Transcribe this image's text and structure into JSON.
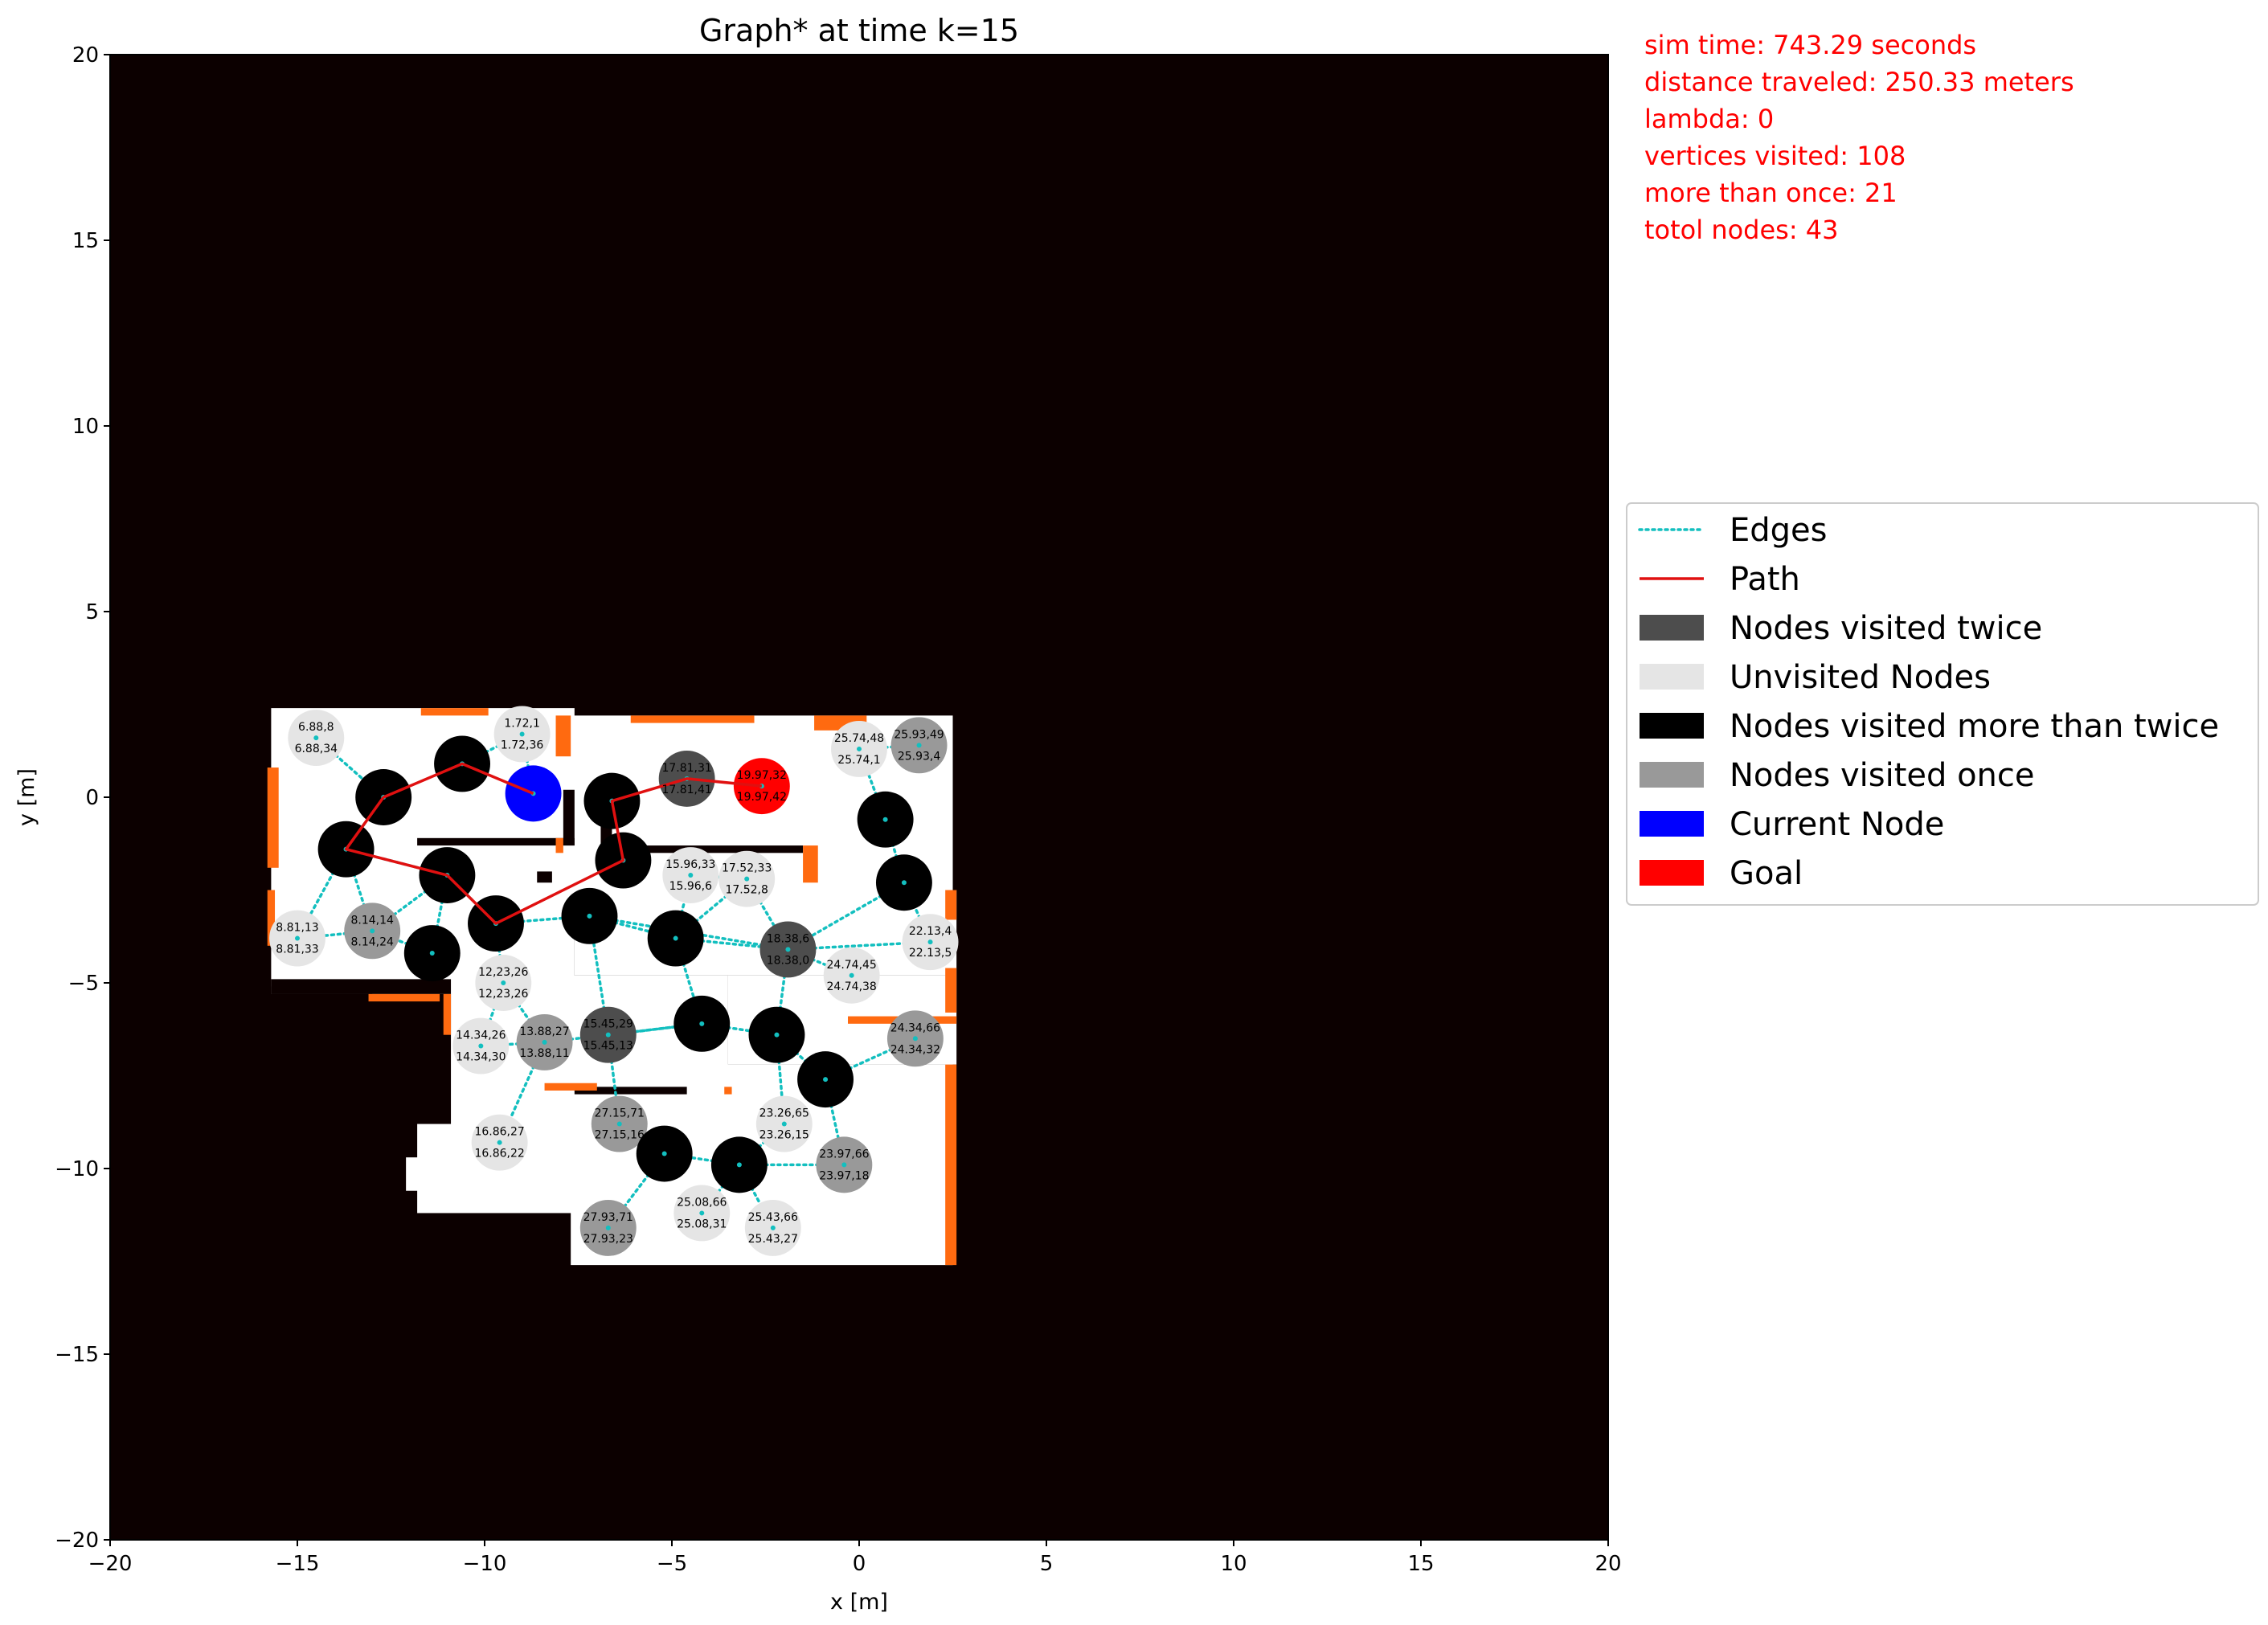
{
  "chart_data": {
    "type": "scatter",
    "title": "Graph* at time k=15",
    "xlabel": "x [m]",
    "ylabel": "y [m]",
    "xlim": [
      -20,
      20
    ],
    "ylim": [
      -20,
      20
    ],
    "xticks": [
      -20,
      -15,
      -10,
      -5,
      0,
      5,
      10,
      15,
      20
    ],
    "yticks": [
      -20,
      -15,
      -10,
      -5,
      0,
      5,
      10,
      15,
      20
    ],
    "xtick_labels": [
      "−20",
      "−15",
      "−10",
      "−5",
      "0",
      "5",
      "10",
      "15",
      "20"
    ],
    "ytick_labels": [
      "−20",
      "−15",
      "−10",
      "−5",
      "0",
      "5",
      "10",
      "15",
      "20"
    ],
    "grid": false,
    "legend_position": "center-right, outside plot",
    "colors": {
      "background": "#0c0000",
      "free_space": "#ffffff",
      "obstacle_edge": "#ff6a10",
      "edges": "#13bfbf",
      "path": "#e01010",
      "twice": "#4d4d4d",
      "unvisited": "#e5e5e5",
      "more_than_twice": "#000000",
      "once": "#999999",
      "current": "#0000ff",
      "goal": "#ff0000",
      "annotation": "#ff0000"
    },
    "annotations": [
      "sim time: 743.29 seconds",
      "distance traveled: 250.33 meters",
      "lambda: 0",
      "vertices visited: 108",
      "more than once: 21",
      "totol nodes: 43"
    ],
    "legend": [
      {
        "label": "Edges",
        "kind": "edges"
      },
      {
        "label": "Path",
        "kind": "path"
      },
      {
        "label": "Nodes visited twice",
        "kind": "twice"
      },
      {
        "label": "Unvisited Nodes",
        "kind": "unvisited"
      },
      {
        "label": "Nodes visited more than twice",
        "kind": "more_than_twice"
      },
      {
        "label": "Nodes visited once",
        "kind": "once"
      },
      {
        "label": "Current Node",
        "kind": "current"
      },
      {
        "label": "Goal",
        "kind": "goal"
      }
    ],
    "nodes": [
      {
        "x": -14.5,
        "y": 1.6,
        "status": "unvisited",
        "labels": [
          "6.88,8",
          "6.88,34"
        ]
      },
      {
        "x": -9.0,
        "y": 1.7,
        "status": "unvisited",
        "labels": [
          "1.72,1",
          "1.72,36"
        ]
      },
      {
        "x": -4.6,
        "y": 0.5,
        "status": "twice",
        "labels": [
          "17.81,31",
          "17.81,41"
        ]
      },
      {
        "x": -2.6,
        "y": 0.3,
        "status": "goal",
        "labels": [
          "19.97,32",
          "19.97,42"
        ]
      },
      {
        "x": 0.0,
        "y": 1.3,
        "status": "unvisited",
        "labels": [
          "25.74,48",
          "25.74,1"
        ]
      },
      {
        "x": 1.6,
        "y": 1.4,
        "status": "once",
        "labels": [
          "25.93,49",
          "25.93,4"
        ]
      },
      {
        "x": -4.5,
        "y": -2.1,
        "status": "unvisited",
        "labels": [
          "15.96,33",
          "15.96,6"
        ]
      },
      {
        "x": -3.0,
        "y": -2.2,
        "status": "unvisited",
        "labels": [
          "17.52,33",
          "17.52,8"
        ]
      },
      {
        "x": -15.0,
        "y": -3.8,
        "status": "unvisited",
        "labels": [
          "8.81,13",
          "8.81,33"
        ]
      },
      {
        "x": -13.0,
        "y": -3.6,
        "status": "once",
        "labels": [
          "8.14,14",
          "8.14,24"
        ]
      },
      {
        "x": -9.5,
        "y": -5.0,
        "status": "unvisited",
        "labels": [
          "12,23,26",
          "12,23,26"
        ]
      },
      {
        "x": -1.9,
        "y": -4.1,
        "status": "twice",
        "labels": [
          "18.38,6",
          "18.38,0"
        ]
      },
      {
        "x": -0.2,
        "y": -4.8,
        "status": "unvisited",
        "labels": [
          "24.74,45",
          "24.74,38"
        ]
      },
      {
        "x": 1.9,
        "y": -3.9,
        "status": "unvisited",
        "labels": [
          "22.13,4",
          "22.13,5"
        ]
      },
      {
        "x": -10.1,
        "y": -6.7,
        "status": "unvisited",
        "labels": [
          "14.34,26",
          "14.34,30"
        ]
      },
      {
        "x": -8.4,
        "y": -6.6,
        "status": "once",
        "labels": [
          "13.88,27",
          "13.88,11"
        ]
      },
      {
        "x": -6.7,
        "y": -6.4,
        "status": "twice",
        "labels": [
          "15.45,29",
          "15.45,13"
        ]
      },
      {
        "x": 1.5,
        "y": -6.5,
        "status": "once",
        "labels": [
          "24.34,66",
          "24.34,32"
        ]
      },
      {
        "x": -9.6,
        "y": -9.3,
        "status": "unvisited",
        "labels": [
          "16.86,27",
          "16.86,22"
        ]
      },
      {
        "x": -6.4,
        "y": -8.8,
        "status": "once",
        "labels": [
          "27.15,71",
          "27.15,16"
        ]
      },
      {
        "x": -2.0,
        "y": -8.8,
        "status": "unvisited",
        "labels": [
          "23.26,65",
          "23.26,15"
        ]
      },
      {
        "x": -0.4,
        "y": -9.9,
        "status": "once",
        "labels": [
          "23.97,66",
          "23.97,18"
        ]
      },
      {
        "x": -6.7,
        "y": -11.6,
        "status": "once",
        "labels": [
          "27.93,71",
          "27.93,23"
        ]
      },
      {
        "x": -4.2,
        "y": -11.2,
        "status": "unvisited",
        "labels": [
          "25.08,66",
          "25.08,31"
        ]
      },
      {
        "x": -2.3,
        "y": -11.6,
        "status": "unvisited",
        "labels": [
          "25.43,66",
          "25.43,27"
        ]
      },
      {
        "x": -12.7,
        "y": 0.0,
        "status": "more_than_twice",
        "labels": []
      },
      {
        "x": -10.6,
        "y": 0.9,
        "status": "more_than_twice",
        "labels": []
      },
      {
        "x": -8.7,
        "y": 0.1,
        "status": "current",
        "labels": []
      },
      {
        "x": -6.6,
        "y": -0.1,
        "status": "more_than_twice",
        "labels": []
      },
      {
        "x": -13.7,
        "y": -1.4,
        "status": "more_than_twice",
        "labels": []
      },
      {
        "x": -6.3,
        "y": -1.7,
        "status": "more_than_twice",
        "labels": []
      },
      {
        "x": 0.7,
        "y": -0.6,
        "status": "more_than_twice",
        "labels": []
      },
      {
        "x": -11.0,
        "y": -2.1,
        "status": "more_than_twice",
        "labels": []
      },
      {
        "x": 1.2,
        "y": -2.3,
        "status": "more_than_twice",
        "labels": []
      },
      {
        "x": -9.7,
        "y": -3.4,
        "status": "more_than_twice",
        "labels": []
      },
      {
        "x": -11.4,
        "y": -4.2,
        "status": "more_than_twice",
        "labels": []
      },
      {
        "x": -7.2,
        "y": -3.2,
        "status": "more_than_twice",
        "labels": []
      },
      {
        "x": -4.9,
        "y": -3.8,
        "status": "more_than_twice",
        "labels": []
      },
      {
        "x": -4.2,
        "y": -6.1,
        "status": "more_than_twice",
        "labels": []
      },
      {
        "x": -2.2,
        "y": -6.4,
        "status": "more_than_twice",
        "labels": []
      },
      {
        "x": -0.9,
        "y": -7.6,
        "status": "more_than_twice",
        "labels": []
      },
      {
        "x": -5.2,
        "y": -9.6,
        "status": "more_than_twice",
        "labels": []
      },
      {
        "x": -3.2,
        "y": -9.9,
        "status": "more_than_twice",
        "labels": []
      }
    ],
    "edges": [
      [
        0,
        25
      ],
      [
        1,
        26
      ],
      [
        1,
        27
      ],
      [
        25,
        29
      ],
      [
        29,
        32
      ],
      [
        29,
        8
      ],
      [
        29,
        9
      ],
      [
        32,
        9
      ],
      [
        32,
        35
      ],
      [
        35,
        9
      ],
      [
        9,
        8
      ],
      [
        32,
        34
      ],
      [
        34,
        10
      ],
      [
        34,
        36
      ],
      [
        10,
        15
      ],
      [
        10,
        14
      ],
      [
        15,
        14
      ],
      [
        15,
        18
      ],
      [
        15,
        16
      ],
      [
        16,
        36
      ],
      [
        36,
        37
      ],
      [
        37,
        6
      ],
      [
        37,
        7
      ],
      [
        6,
        7
      ],
      [
        7,
        11
      ],
      [
        37,
        11
      ],
      [
        37,
        38
      ],
      [
        36,
        11
      ],
      [
        11,
        12
      ],
      [
        11,
        13
      ],
      [
        13,
        33
      ],
      [
        33,
        31
      ],
      [
        31,
        4
      ],
      [
        4,
        5
      ],
      [
        33,
        11
      ],
      [
        16,
        38
      ],
      [
        38,
        39
      ],
      [
        39,
        11
      ],
      [
        39,
        40
      ],
      [
        40,
        17
      ],
      [
        40,
        21
      ],
      [
        39,
        20
      ],
      [
        20,
        42
      ],
      [
        42,
        41
      ],
      [
        41,
        19
      ],
      [
        41,
        22
      ],
      [
        42,
        23
      ],
      [
        42,
        24
      ],
      [
        42,
        21
      ],
      [
        16,
        19
      ],
      [
        38,
        16
      ]
    ],
    "path": [
      [
        -8.7,
        0.1
      ],
      [
        -10.6,
        0.9
      ],
      [
        -12.7,
        0.0
      ],
      [
        -13.7,
        -1.4
      ],
      [
        -11.0,
        -2.1
      ],
      [
        -9.7,
        -3.4
      ],
      [
        -6.3,
        -1.7
      ],
      [
        -6.6,
        -0.1
      ],
      [
        -4.6,
        0.5
      ],
      [
        -2.6,
        0.3
      ]
    ]
  }
}
